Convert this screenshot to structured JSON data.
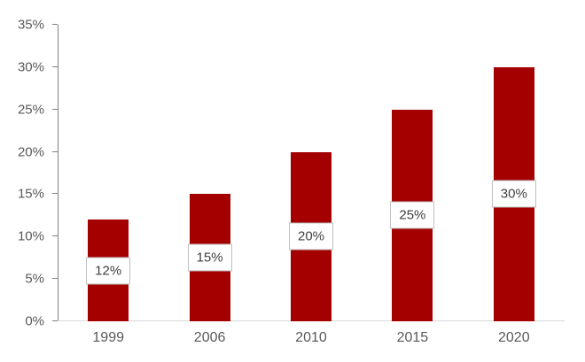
{
  "chart_data": {
    "type": "bar",
    "title": "",
    "xlabel": "",
    "ylabel": "",
    "categories": [
      "1999",
      "2006",
      "2010",
      "2015",
      "2020"
    ],
    "values": [
      12,
      15,
      20,
      25,
      30
    ],
    "data_labels": [
      "12%",
      "15%",
      "20%",
      "25%",
      "30%"
    ],
    "ylim": [
      0,
      35
    ],
    "y_tick_step": 5,
    "y_tick_labels": [
      "0%",
      "5%",
      "10%",
      "15%",
      "20%",
      "25%",
      "30%",
      "35%"
    ],
    "grid": false,
    "legend": false,
    "data_label_position": "inside-center",
    "colors": {
      "bar": "#a40000",
      "axis_text": "#595959",
      "data_label_text": "#404040",
      "data_label_border": "#bfbfbf",
      "data_label_bg": "#ffffff",
      "y_axis_line": "#808080",
      "x_axis_line": "#d9d9d9"
    }
  }
}
